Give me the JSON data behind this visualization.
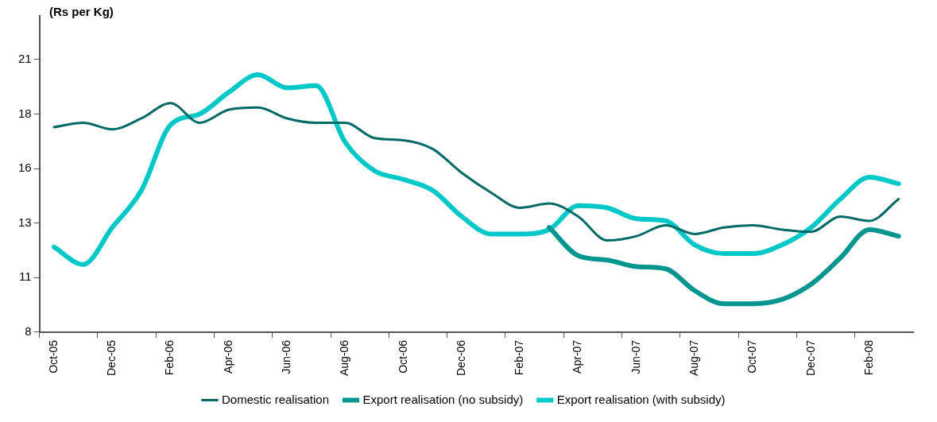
{
  "chart_data": {
    "type": "line",
    "ylabel": "(Rs per Kg)",
    "categories": [
      "Oct-05",
      null,
      "Dec-05",
      null,
      "Feb-06",
      null,
      "Apr-06",
      null,
      "Jun-06",
      null,
      "Aug-06",
      null,
      "Oct-06",
      null,
      "Dec-06",
      null,
      "Feb-07",
      null,
      "Apr-07",
      null,
      "Jun-07",
      null,
      "Aug-07",
      null,
      "Oct-07",
      null,
      "Dec-07",
      null,
      "Feb-08",
      null
    ],
    "series": [
      {
        "name": "Domestic realisation",
        "color": "#006a66",
        "values": [
          17.4,
          17.6,
          17.3,
          17.8,
          18.5,
          17.6,
          18.2,
          18.3,
          17.8,
          17.6,
          17.6,
          16.9,
          16.8,
          16.4,
          15.3,
          14.4,
          13.7,
          13.9,
          13.3,
          12.2,
          12.4,
          12.9,
          12.5,
          12.8,
          12.9,
          12.7,
          12.6,
          13.3,
          13.1,
          14.1
        ]
      },
      {
        "name": "Export realisation (no subsidy)",
        "color": "#00968f",
        "values": [
          null,
          null,
          null,
          null,
          null,
          null,
          null,
          null,
          null,
          null,
          null,
          null,
          null,
          null,
          null,
          null,
          null,
          12.8,
          11.5,
          11.3,
          11.0,
          10.9,
          9.9,
          9.3,
          9.3,
          9.5,
          10.2,
          11.4,
          12.7,
          12.4
        ]
      },
      {
        "name": "Export realisation (with subsidy)",
        "color": "#00c8c8",
        "values": [
          11.9,
          11.1,
          12.8,
          14.5,
          17.5,
          18.0,
          19.0,
          19.8,
          19.2,
          19.3,
          16.7,
          15.4,
          15.0,
          14.5,
          13.3,
          12.5,
          12.5,
          12.7,
          13.8,
          13.7,
          13.2,
          13.1,
          12.0,
          11.6,
          11.6,
          12.0,
          12.8,
          14.1,
          15.1,
          14.8
        ]
      }
    ],
    "ylim": [
      8,
      22.5
    ],
    "yticks": [
      8,
      {
        "value": 10.5,
        "label": "11"
      },
      13,
      {
        "value": 15.5,
        "label": "16"
      },
      18,
      {
        "value": 20.5,
        "label": "21"
      }
    ],
    "grid": false,
    "legend": "bottom",
    "marker": "none",
    "line_style": "solid"
  }
}
